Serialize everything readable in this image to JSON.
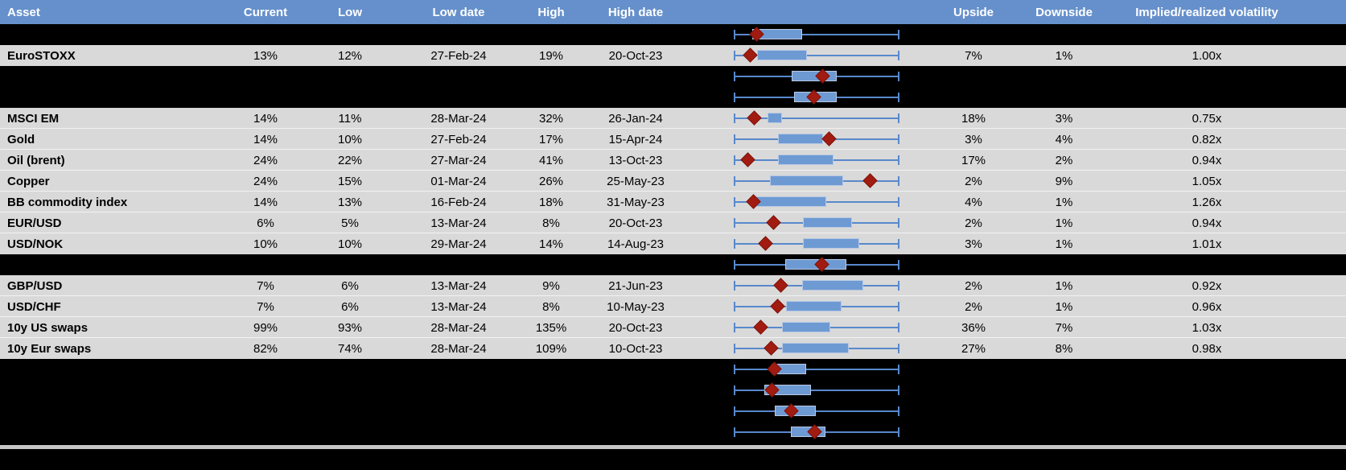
{
  "table": {
    "columns": {
      "asset": "Asset",
      "current": "Current",
      "low": "Low",
      "low_date": "Low date",
      "high": "High",
      "high_date": "High date",
      "chart": "",
      "upside": "Upside",
      "downside": "Downside",
      "impl_real": "Implied/realized volatility"
    }
  },
  "colors": {
    "header_bg": "#6690CB",
    "row_gray": "#D9D9D9",
    "row_black": "#000000",
    "box_blue": "#6E9AD3",
    "whisker_blue": "#5888CC",
    "diamond_red": "#A11B10",
    "separator_gray": "#C6C6C6"
  },
  "rows": [
    {
      "type": "black",
      "asset": "",
      "current": "",
      "low": "",
      "low_date": "",
      "high": "",
      "high_date": "",
      "upside": "",
      "downside": "",
      "impl_real": "",
      "chart": {
        "box": [
          0.108,
          0.41
        ],
        "marker": 0.137
      }
    },
    {
      "type": "data",
      "asset": "EuroSTOXX",
      "current": "13%",
      "low": "12%",
      "low_date": "27-Feb-24",
      "high": "19%",
      "high_date": "20-Oct-23",
      "upside": "7%",
      "downside": "1%",
      "impl_real": "1.00x",
      "chart": {
        "box": [
          0.135,
          0.443
        ],
        "marker": 0.095
      }
    },
    {
      "type": "black",
      "asset": "",
      "current": "",
      "low": "",
      "low_date": "",
      "high": "",
      "high_date": "",
      "upside": "",
      "downside": "",
      "impl_real": "",
      "chart": {
        "box": [
          0.35,
          0.623
        ],
        "marker": 0.536
      }
    },
    {
      "type": "black",
      "asset": "",
      "current": "",
      "low": "",
      "low_date": "",
      "high": "",
      "high_date": "",
      "upside": "",
      "downside": "",
      "impl_real": "",
      "chart": {
        "box": [
          0.361,
          0.623
        ],
        "marker": 0.485
      }
    },
    {
      "type": "data",
      "asset": "MSCI EM",
      "current": "14%",
      "low": "11%",
      "low_date": "28-Mar-24",
      "high": "32%",
      "high_date": "26-Jan-24",
      "upside": "18%",
      "downside": "3%",
      "impl_real": "0.75x",
      "chart": {
        "box": [
          0.2,
          0.29
        ],
        "marker": 0.122
      }
    },
    {
      "type": "data",
      "asset": "Gold",
      "current": "14%",
      "low": "10%",
      "low_date": "27-Feb-24",
      "high": "17%",
      "high_date": "15-Apr-24",
      "upside": "3%",
      "downside": "4%",
      "impl_real": "0.82x",
      "chart": {
        "box": [
          0.263,
          0.538
        ],
        "marker": 0.577
      }
    },
    {
      "type": "data",
      "asset": "Oil (brent)",
      "current": "24%",
      "low": "22%",
      "low_date": "27-Mar-24",
      "high": "41%",
      "high_date": "13-Oct-23",
      "upside": "17%",
      "downside": "2%",
      "impl_real": "0.94x",
      "chart": {
        "box": [
          0.263,
          0.603
        ],
        "marker": 0.083
      }
    },
    {
      "type": "data",
      "asset": "Copper",
      "current": "24%",
      "low": "15%",
      "low_date": "01-Mar-24",
      "high": "26%",
      "high_date": "25-May-23",
      "upside": "2%",
      "downside": "9%",
      "impl_real": "1.05x",
      "chart": {
        "box": [
          0.217,
          0.66
        ],
        "marker": 0.827
      }
    },
    {
      "type": "data",
      "asset": "BB commodity index",
      "current": "14%",
      "low": "13%",
      "low_date": "16-Feb-24",
      "high": "18%",
      "high_date": "31-May-23",
      "upside": "4%",
      "downside": "1%",
      "impl_real": "1.26x",
      "chart": {
        "box": [
          0.129,
          0.557
        ],
        "marker": 0.116
      }
    },
    {
      "type": "data",
      "asset": "EUR/USD",
      "current": "6%",
      "low": "5%",
      "low_date": "13-Mar-24",
      "high": "8%",
      "high_date": "20-Oct-23",
      "upside": "2%",
      "downside": "1%",
      "impl_real": "0.94x",
      "chart": {
        "box": [
          0.418,
          0.717
        ],
        "marker": 0.239
      }
    },
    {
      "type": "data",
      "asset": "USD/NOK",
      "current": "10%",
      "low": "10%",
      "low_date": "29-Mar-24",
      "high": "14%",
      "high_date": "14-Aug-23",
      "upside": "3%",
      "downside": "1%",
      "impl_real": "1.01x",
      "chart": {
        "box": [
          0.418,
          0.761
        ],
        "marker": 0.19
      }
    },
    {
      "type": "black",
      "asset": "",
      "current": "",
      "low": "",
      "low_date": "",
      "high": "",
      "high_date": "",
      "upside": "",
      "downside": "",
      "impl_real": "",
      "chart": {
        "box": [
          0.309,
          0.68
        ],
        "marker": 0.533
      }
    },
    {
      "type": "data",
      "asset": "GBP/USD",
      "current": "7%",
      "low": "6%",
      "low_date": "13-Mar-24",
      "high": "9%",
      "high_date": "21-Jun-23",
      "upside": "2%",
      "downside": "1%",
      "impl_real": "0.92x",
      "chart": {
        "box": [
          0.41,
          0.786
        ],
        "marker": 0.283
      }
    },
    {
      "type": "data",
      "asset": "USD/CHF",
      "current": "7%",
      "low": "6%",
      "low_date": "13-Mar-24",
      "high": "8%",
      "high_date": "10-May-23",
      "upside": "2%",
      "downside": "1%",
      "impl_real": "0.96x",
      "chart": {
        "box": [
          0.312,
          0.651
        ],
        "marker": 0.26
      }
    },
    {
      "type": "data",
      "asset": "10y US swaps",
      "current": "99%",
      "low": "93%",
      "low_date": "28-Mar-24",
      "high": "135%",
      "high_date": "20-Oct-23",
      "upside": "36%",
      "downside": "7%",
      "impl_real": "1.03x",
      "chart": {
        "box": [
          0.291,
          0.582
        ],
        "marker": 0.16
      }
    },
    {
      "type": "data",
      "asset": "10y Eur swaps",
      "current": "82%",
      "low": "74%",
      "low_date": "28-Mar-24",
      "high": "109%",
      "high_date": "10-Oct-23",
      "upside": "27%",
      "downside": "8%",
      "impl_real": "0.98x",
      "chart": {
        "box": [
          0.288,
          0.696
        ],
        "marker": 0.222
      }
    },
    {
      "type": "black",
      "asset": "",
      "current": "",
      "low": "",
      "low_date": "",
      "high": "",
      "high_date": "",
      "upside": "",
      "downside": "",
      "impl_real": "",
      "chart": {
        "box": [
          0.227,
          0.435
        ],
        "marker": 0.244
      }
    },
    {
      "type": "black",
      "asset": "",
      "current": "",
      "low": "",
      "low_date": "",
      "high": "",
      "high_date": "",
      "upside": "",
      "downside": "",
      "impl_real": "",
      "chart": {
        "box": [
          0.181,
          0.464
        ],
        "marker": 0.227
      }
    },
    {
      "type": "black",
      "asset": "",
      "current": "",
      "low": "",
      "low_date": "",
      "high": "",
      "high_date": "",
      "upside": "",
      "downside": "",
      "impl_real": "",
      "chart": {
        "box": [
          0.244,
          0.497
        ],
        "marker": 0.345
      }
    },
    {
      "type": "black",
      "asset": "",
      "current": "",
      "low": "",
      "low_date": "",
      "high": "",
      "high_date": "",
      "upside": "",
      "downside": "",
      "impl_real": "",
      "chart": {
        "box": [
          0.342,
          0.554
        ],
        "marker": 0.489
      }
    }
  ],
  "chart_data": {
    "type": "table",
    "title": "Implied volatility: current level vs 1-year range",
    "columns": [
      "Asset",
      "Current",
      "Low",
      "Low date",
      "High",
      "High date",
      "Upside",
      "Downside",
      "Implied/realized volatility"
    ],
    "rows": [
      [
        "EuroSTOXX",
        "13%",
        "12%",
        "27-Feb-24",
        "19%",
        "20-Oct-23",
        "7%",
        "1%",
        "1.00x"
      ],
      [
        "MSCI EM",
        "14%",
        "11%",
        "28-Mar-24",
        "32%",
        "26-Jan-24",
        "18%",
        "3%",
        "0.75x"
      ],
      [
        "Gold",
        "14%",
        "10%",
        "27-Feb-24",
        "17%",
        "15-Apr-24",
        "3%",
        "4%",
        "0.82x"
      ],
      [
        "Oil (brent)",
        "24%",
        "22%",
        "27-Mar-24",
        "41%",
        "13-Oct-23",
        "17%",
        "2%",
        "0.94x"
      ],
      [
        "Copper",
        "24%",
        "15%",
        "01-Mar-24",
        "26%",
        "25-May-23",
        "2%",
        "9%",
        "1.05x"
      ],
      [
        "BB commodity index",
        "14%",
        "13%",
        "16-Feb-24",
        "18%",
        "31-May-23",
        "4%",
        "1%",
        "1.26x"
      ],
      [
        "EUR/USD",
        "6%",
        "5%",
        "13-Mar-24",
        "8%",
        "20-Oct-23",
        "2%",
        "1%",
        "0.94x"
      ],
      [
        "USD/NOK",
        "10%",
        "10%",
        "29-Mar-24",
        "14%",
        "14-Aug-23",
        "3%",
        "1%",
        "1.01x"
      ],
      [
        "GBP/USD",
        "7%",
        "6%",
        "13-Mar-24",
        "9%",
        "21-Jun-23",
        "2%",
        "1%",
        "0.92x"
      ],
      [
        "USD/CHF",
        "7%",
        "6%",
        "13-Mar-24",
        "8%",
        "10-May-23",
        "2%",
        "1%",
        "0.96x"
      ],
      [
        "10y US swaps",
        "99%",
        "93%",
        "28-Mar-24",
        "135%",
        "20-Oct-23",
        "36%",
        "7%",
        "1.03x"
      ],
      [
        "10y Eur swaps",
        "82%",
        "74%",
        "28-Mar-24",
        "109%",
        "10-Oct-23",
        "27%",
        "8%",
        "0.98x"
      ]
    ],
    "boxplot_column": {
      "description": "Horizontal box plots, whisker spans full 1y range normalized 0-1; blue box = mid range; red diamond = current level",
      "range": [
        0,
        1
      ],
      "series": [
        {
          "asset": "",
          "box": [
            0.108,
            0.41
          ],
          "marker": 0.137
        },
        {
          "asset": "EuroSTOXX",
          "box": [
            0.135,
            0.443
          ],
          "marker": 0.095
        },
        {
          "asset": "",
          "box": [
            0.35,
            0.623
          ],
          "marker": 0.536
        },
        {
          "asset": "",
          "box": [
            0.361,
            0.623
          ],
          "marker": 0.485
        },
        {
          "asset": "MSCI EM",
          "box": [
            0.2,
            0.29
          ],
          "marker": 0.122
        },
        {
          "asset": "Gold",
          "box": [
            0.263,
            0.538
          ],
          "marker": 0.577
        },
        {
          "asset": "Oil (brent)",
          "box": [
            0.263,
            0.603
          ],
          "marker": 0.083
        },
        {
          "asset": "Copper",
          "box": [
            0.217,
            0.66
          ],
          "marker": 0.827
        },
        {
          "asset": "BB commodity index",
          "box": [
            0.129,
            0.557
          ],
          "marker": 0.116
        },
        {
          "asset": "EUR/USD",
          "box": [
            0.418,
            0.717
          ],
          "marker": 0.239
        },
        {
          "asset": "USD/NOK",
          "box": [
            0.418,
            0.761
          ],
          "marker": 0.19
        },
        {
          "asset": "",
          "box": [
            0.309,
            0.68
          ],
          "marker": 0.533
        },
        {
          "asset": "GBP/USD",
          "box": [
            0.41,
            0.786
          ],
          "marker": 0.283
        },
        {
          "asset": "USD/CHF",
          "box": [
            0.312,
            0.651
          ],
          "marker": 0.26
        },
        {
          "asset": "10y US swaps",
          "box": [
            0.291,
            0.582
          ],
          "marker": 0.16
        },
        {
          "asset": "10y Eur swaps",
          "box": [
            0.288,
            0.696
          ],
          "marker": 0.222
        },
        {
          "asset": "",
          "box": [
            0.227,
            0.435
          ],
          "marker": 0.244
        },
        {
          "asset": "",
          "box": [
            0.181,
            0.464
          ],
          "marker": 0.227
        },
        {
          "asset": "",
          "box": [
            0.244,
            0.497
          ],
          "marker": 0.345
        },
        {
          "asset": "",
          "box": [
            0.342,
            0.554
          ],
          "marker": 0.489
        }
      ]
    }
  }
}
